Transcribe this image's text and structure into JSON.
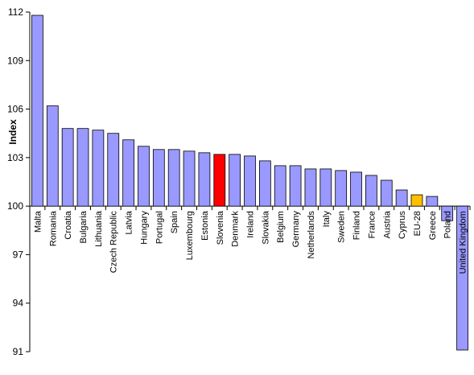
{
  "chart_data": {
    "type": "bar",
    "title": "",
    "xlabel": "",
    "ylabel": "Index",
    "ylim": [
      91,
      112
    ],
    "yticks": [
      91,
      94,
      97,
      100,
      103,
      106,
      109,
      112
    ],
    "baseline": 100,
    "grid": false,
    "legend": "none",
    "categories": [
      "Malta",
      "Romania",
      "Croatia",
      "Bulgaria",
      "Lithuania",
      "Czech Republic",
      "Latvia",
      "Hungary",
      "Portugal",
      "Spain",
      "Luxembourg",
      "Estonia",
      "Slovenia",
      "Denmark",
      "Ireland",
      "Slovakia",
      "Belgium",
      "Germany",
      "Netherlands",
      "Italy",
      "Sweden",
      "Finland",
      "France",
      "Austria",
      "Cyprus",
      "EU-28",
      "Greece",
      "Poland",
      "United Kingdom"
    ],
    "values": [
      111.8,
      106.2,
      104.8,
      104.8,
      104.7,
      104.5,
      104.1,
      103.7,
      103.5,
      103.5,
      103.4,
      103.3,
      103.2,
      103.2,
      103.1,
      102.8,
      102.5,
      102.5,
      102.3,
      102.3,
      102.2,
      102.1,
      101.9,
      101.6,
      101.0,
      100.7,
      100.6,
      99.1,
      91.1
    ],
    "colors": {
      "default": "#9999FF",
      "highlight": "#FF0000",
      "eu": "#FFC000",
      "outline": "#000000"
    },
    "highlight_category": "Slovenia",
    "eu_category": "EU-28"
  }
}
